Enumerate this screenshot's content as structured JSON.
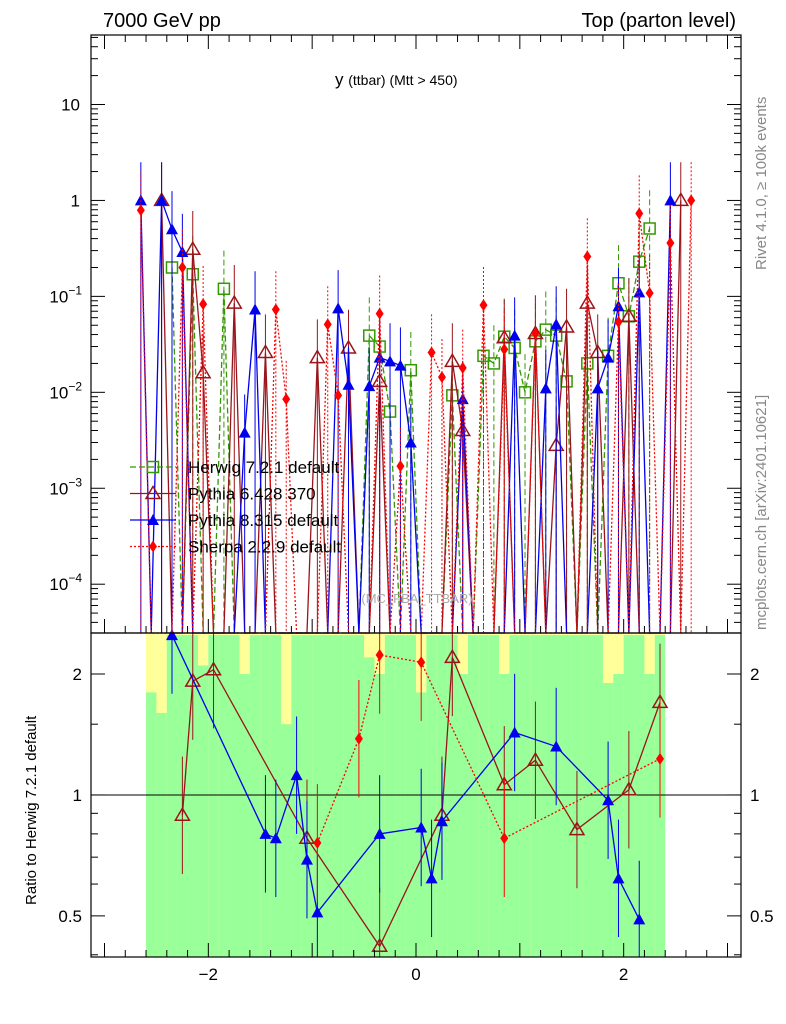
{
  "header": {
    "left": "7000 GeV pp",
    "right": "Top (parton level)"
  },
  "side": {
    "rivet": "Rivet 4.1.0, ≥ 100k events",
    "mcplots": "mcplots.cern.ch [arXiv:2401.10621]"
  },
  "watermark": "(MC_FBA_TTBAR)",
  "chart_data": [
    {
      "type": "line",
      "panel": "main",
      "title": "y",
      "title_sub": "(ttbar) (Mtt > 450)",
      "xlabel": "",
      "ylabel": "",
      "xlim": [
        -3.13,
        3.13
      ],
      "ylim": [
        3.1e-05,
        53
      ],
      "yscale": "log",
      "yticks": [
        {
          "value": 10,
          "base": "10",
          "exp": ""
        },
        {
          "value": 1,
          "base": "1",
          "exp": ""
        },
        {
          "value": 0.1,
          "base": "10",
          "exp": "−1"
        },
        {
          "value": 0.01,
          "base": "10",
          "exp": "−2"
        },
        {
          "value": 0.001,
          "base": "10",
          "exp": "−3"
        },
        {
          "value": 0.0001,
          "base": "10",
          "exp": "−4"
        }
      ],
      "legend_position": "left-middle",
      "series": [
        {
          "name": "Herwig 7.2.1 default",
          "color": "#339900",
          "marker": "open-square",
          "dash": "6,3",
          "points": [
            [
              -2.35,
              0.2
            ],
            [
              -2.15,
              0.17
            ],
            [
              -1.85,
              0.12
            ],
            [
              -0.45,
              0.039
            ],
            [
              -0.35,
              0.03
            ],
            [
              -0.25,
              0.0063
            ],
            [
              -0.05,
              0.017
            ],
            [
              0.35,
              0.0093
            ],
            [
              0.65,
              0.024
            ],
            [
              0.75,
              0.02
            ],
            [
              0.85,
              0.038
            ],
            [
              0.95,
              0.029
            ],
            [
              1.05,
              0.01
            ],
            [
              1.15,
              0.034
            ],
            [
              1.25,
              0.045
            ],
            [
              1.35,
              0.039
            ],
            [
              1.45,
              0.013
            ],
            [
              1.65,
              0.02
            ],
            [
              1.85,
              0.024
            ],
            [
              1.95,
              0.137
            ],
            [
              2.05,
              0.062
            ],
            [
              2.15,
              0.23
            ],
            [
              2.25,
              0.51
            ]
          ]
        },
        {
          "name": "Pythia 6.428 370",
          "color": "#99151b",
          "marker": "open-triangle",
          "dash": "",
          "points": [
            [
              -2.45,
              1.0
            ],
            [
              -2.15,
              0.31
            ],
            [
              -2.05,
              0.016
            ],
            [
              -1.75,
              0.085
            ],
            [
              -1.45,
              0.026
            ],
            [
              -0.95,
              0.023
            ],
            [
              -0.65,
              0.029
            ],
            [
              -0.35,
              0.013
            ],
            [
              0.35,
              0.021
            ],
            [
              0.45,
              0.004
            ],
            [
              0.85,
              0.037
            ],
            [
              1.15,
              0.041
            ],
            [
              1.35,
              0.0028
            ],
            [
              1.45,
              0.048
            ],
            [
              1.65,
              0.085
            ],
            [
              1.75,
              0.026
            ],
            [
              2.05,
              0.062
            ],
            [
              2.55,
              1.0
            ]
          ]
        },
        {
          "name": "Pythia 8.315 default",
          "color": "#0000ee",
          "marker": "filled-triangle",
          "dash": "",
          "points": [
            [
              -2.65,
              1.0
            ],
            [
              -2.45,
              1.0
            ],
            [
              -2.35,
              0.5
            ],
            [
              -2.25,
              0.29
            ],
            [
              -1.65,
              0.0038
            ],
            [
              -1.55,
              0.073
            ],
            [
              -0.75,
              0.075
            ],
            [
              -0.65,
              0.012
            ],
            [
              -0.45,
              0.0116
            ],
            [
              -0.35,
              0.023
            ],
            [
              -0.25,
              0.021
            ],
            [
              -0.15,
              0.019
            ],
            [
              -0.05,
              0.003
            ],
            [
              0.45,
              0.0085
            ],
            [
              0.95,
              0.039
            ],
            [
              1.25,
              0.011
            ],
            [
              1.35,
              0.051
            ],
            [
              1.75,
              0.011
            ],
            [
              1.85,
              0.023
            ],
            [
              1.95,
              0.079
            ],
            [
              2.15,
              0.11
            ],
            [
              2.45,
              1.0
            ]
          ]
        },
        {
          "name": "Sherpa 2.2.9 default",
          "color": "#ff0000",
          "marker": "filled-diamond",
          "dash": "2,2",
          "points": [
            [
              -2.65,
              0.79
            ],
            [
              -2.25,
              0.2
            ],
            [
              -2.05,
              0.083
            ],
            [
              -1.35,
              0.073
            ],
            [
              -1.25,
              0.0085
            ],
            [
              -0.85,
              0.051
            ],
            [
              -0.75,
              0.0093
            ],
            [
              -0.35,
              0.066
            ],
            [
              -0.15,
              0.0017
            ],
            [
              0.15,
              0.026
            ],
            [
              0.25,
              0.0144
            ],
            [
              0.45,
              0.018
            ],
            [
              0.65,
              0.081
            ],
            [
              0.85,
              0.028
            ],
            [
              1.15,
              0.041
            ],
            [
              1.65,
              0.26
            ],
            [
              1.95,
              0.054
            ],
            [
              2.15,
              0.73
            ],
            [
              2.25,
              0.108
            ],
            [
              2.45,
              0.36
            ],
            [
              2.65,
              1.0
            ]
          ]
        }
      ]
    },
    {
      "type": "line",
      "panel": "ratio",
      "ylabel": "Ratio to Herwig 7.2.1 default",
      "xlim": [
        -3.13,
        3.13
      ],
      "ylim": [
        0.395,
        2.53
      ],
      "yscale": "log",
      "yticks": [
        {
          "value": 2,
          "label": "2"
        },
        {
          "value": 1,
          "label": "1"
        },
        {
          "value": 0.5,
          "label": "0.5"
        }
      ],
      "xticks": [
        {
          "value": -2,
          "label": "−2"
        },
        {
          "value": 0,
          "label": "0"
        },
        {
          "value": 2,
          "label": "2"
        }
      ],
      "band": {
        "x_start": -2.6,
        "bin_width": 0.1,
        "green_hi": [
          1.8,
          1.6,
          2.5,
          2.5,
          2.5,
          2.1,
          2.5,
          2.5,
          2.5,
          2.0,
          2.5,
          2.5,
          2.5,
          1.5,
          2.5,
          2.5,
          2.5,
          2.5,
          2.5,
          2.5,
          2.5,
          2.2,
          2.0,
          2.5,
          2.5,
          2.5,
          1.8,
          2.5,
          2.5,
          2.5,
          2.0,
          2.5,
          2.5,
          2.5,
          2.0,
          2.5,
          2.5,
          2.5,
          2.5,
          2.5,
          2.5,
          2.5,
          2.5,
          2.5,
          1.9,
          2.0,
          2.5,
          2.5,
          2.0,
          2.5
        ],
        "yellow_hi": [
          2.53,
          2.53,
          2.53,
          2.53,
          2.53,
          2.53,
          2.53,
          2.53,
          2.53,
          2.53,
          2.53,
          2.53,
          2.53,
          2.53,
          2.53,
          2.53,
          2.53,
          2.53,
          2.53,
          2.53,
          2.53,
          2.53,
          2.53,
          2.53,
          2.53,
          2.53,
          2.53,
          2.53,
          2.53,
          2.53,
          2.53,
          2.53,
          2.53,
          2.53,
          2.53,
          2.53,
          2.53,
          2.53,
          2.53,
          2.53,
          2.53,
          2.53,
          2.53,
          2.53,
          2.53,
          2.53,
          2.53,
          2.53,
          2.53,
          2.53
        ]
      },
      "series": [
        {
          "name": "Pythia 6.428 370",
          "points": [
            [
              -2.25,
              0.89
            ],
            [
              -2.15,
              1.92
            ],
            [
              -1.95,
              2.05
            ],
            [
              -1.05,
              0.78
            ],
            [
              -0.35,
              0.42
            ],
            [
              0.25,
              0.89
            ],
            [
              0.35,
              2.2
            ],
            [
              0.85,
              1.06
            ],
            [
              1.15,
              1.22
            ],
            [
              1.55,
              0.82
            ],
            [
              2.05,
              1.03
            ],
            [
              2.35,
              1.7
            ]
          ]
        },
        {
          "name": "Pythia 8.315 default",
          "points": [
            [
              -2.35,
              2.5
            ],
            [
              -1.45,
              0.8
            ],
            [
              -1.35,
              0.78
            ],
            [
              -1.15,
              1.12
            ],
            [
              -1.05,
              0.69
            ],
            [
              -0.95,
              0.51
            ],
            [
              -0.35,
              0.8
            ],
            [
              0.05,
              0.83
            ],
            [
              0.15,
              0.62
            ],
            [
              0.25,
              0.86
            ],
            [
              0.95,
              1.43
            ],
            [
              1.35,
              1.32
            ],
            [
              1.85,
              0.97
            ],
            [
              1.95,
              0.62
            ],
            [
              2.15,
              0.49
            ]
          ]
        },
        {
          "name": "Sherpa 2.2.9 default",
          "points": [
            [
              -0.95,
              0.76
            ],
            [
              -0.55,
              1.38
            ],
            [
              -0.35,
              2.23
            ],
            [
              0.05,
              2.14
            ],
            [
              0.85,
              0.78
            ],
            [
              2.35,
              1.23
            ]
          ]
        }
      ]
    }
  ]
}
